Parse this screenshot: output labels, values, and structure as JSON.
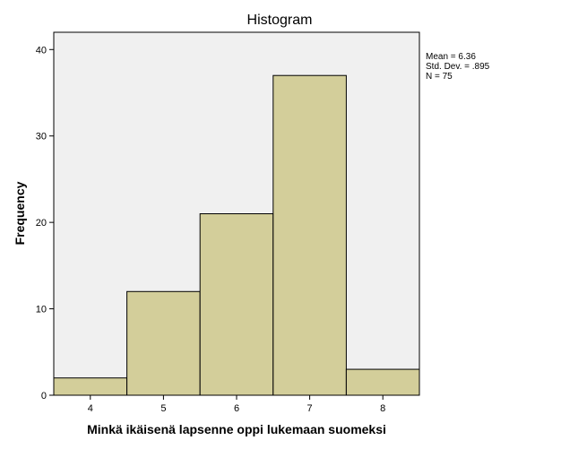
{
  "chart_data": {
    "type": "bar",
    "title": "Histogram",
    "xlabel": "Minkä ikäisenä lapsenne oppi lukemaan suomeksi",
    "ylabel": "Frequency",
    "categories": [
      4,
      5,
      6,
      7,
      8
    ],
    "values": [
      2,
      12,
      21,
      37,
      3
    ],
    "xlim": [
      3.5,
      8.5
    ],
    "ylim": [
      0,
      42
    ],
    "yticks": [
      0,
      10,
      20,
      30,
      40
    ],
    "grid": false,
    "bar_color": "#d3ce9a",
    "plot_background": "#f0f0f0",
    "stats": [
      "Mean = 6.36",
      "Std. Dev. = .895",
      "N = 75"
    ]
  }
}
